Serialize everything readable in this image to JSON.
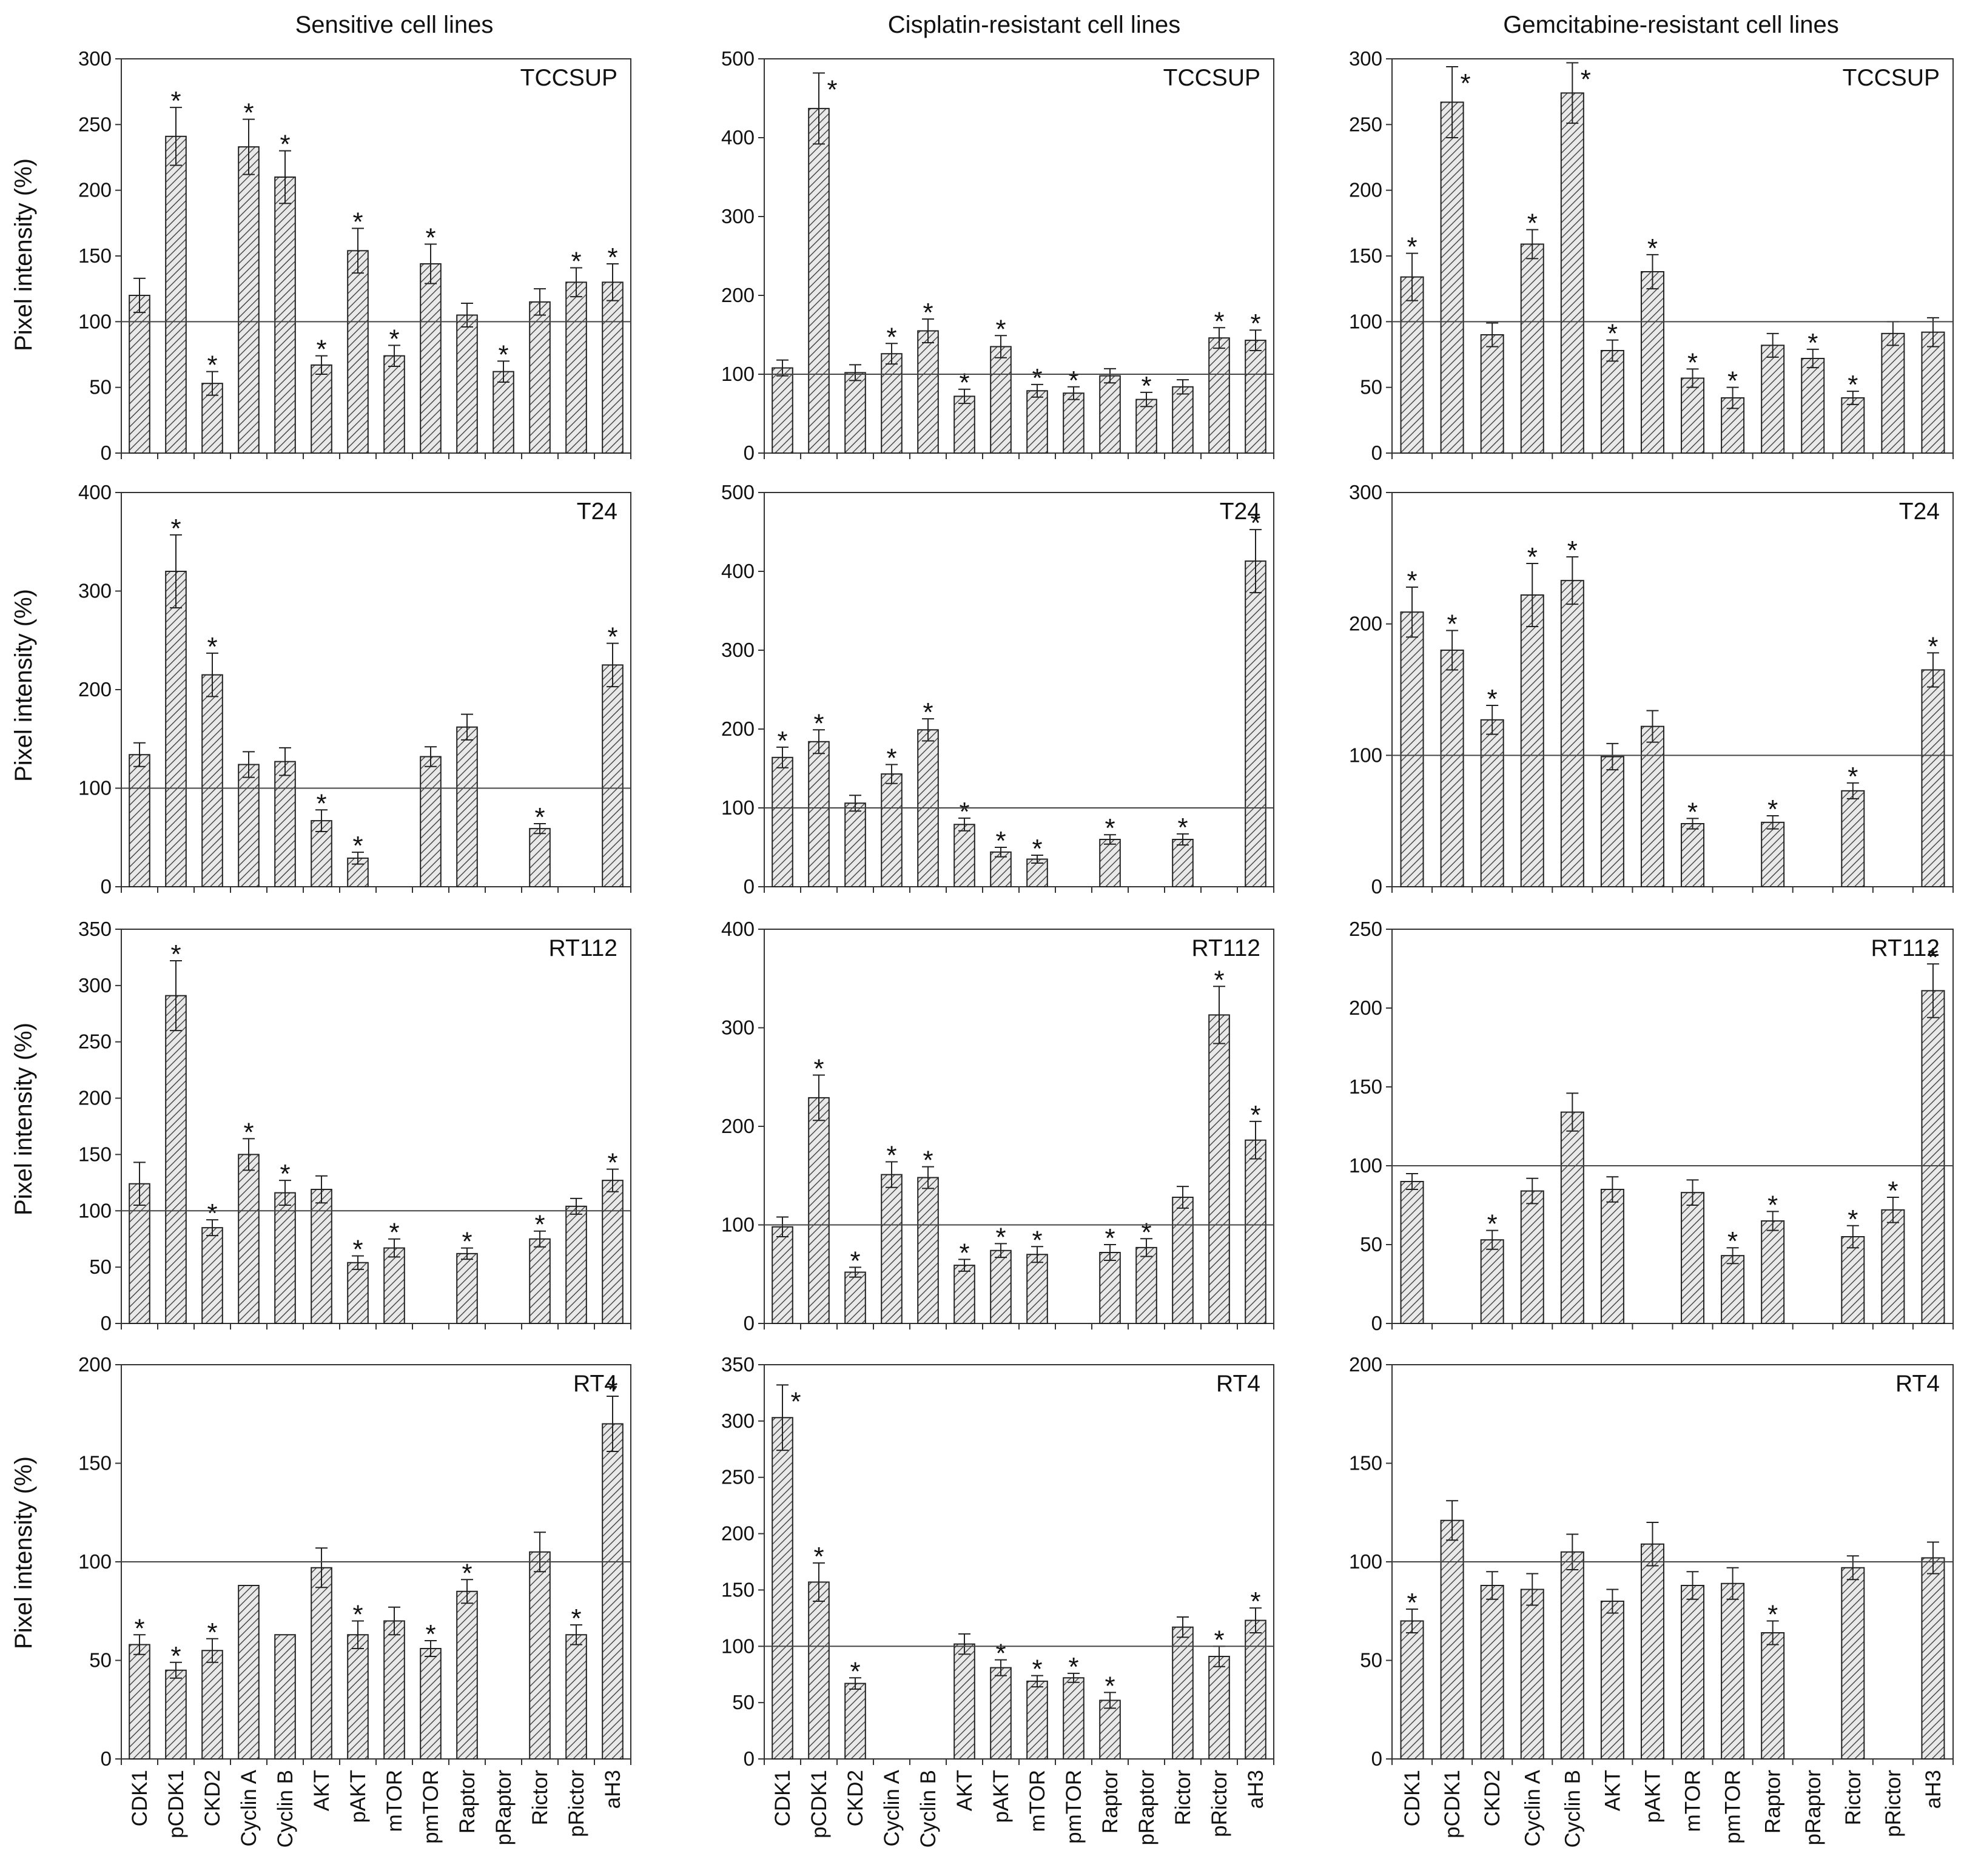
{
  "columns": [
    "Sensitive cell lines",
    "Cisplatin-resistant cell lines",
    "Gemcitabine-resistant cell lines"
  ],
  "y_axis_label": "Pixel intensity (%)",
  "chart_data": [
    {
      "type": "bar",
      "column": 0,
      "row": 0,
      "title": "TCCSUP",
      "ylim": [
        0,
        300
      ],
      "yticks": [
        0,
        50,
        100,
        150,
        200,
        250,
        300
      ],
      "reference_line": 100,
      "categories": [
        "CDK1",
        "pCDK1",
        "CKD2",
        "Cyclin A",
        "Cyclin B",
        "AKT",
        "pAKT",
        "mTOR",
        "pmTOR",
        "Raptor",
        "pRaptor",
        "Rictor",
        "pRictor",
        "aH3"
      ],
      "values": [
        120,
        241,
        53,
        233,
        210,
        67,
        154,
        74,
        144,
        105,
        62,
        115,
        130,
        130
      ],
      "errors": [
        13,
        22,
        9,
        21,
        20,
        7,
        17,
        8,
        15,
        9,
        8,
        10,
        11,
        14
      ],
      "significant": [
        false,
        true,
        true,
        true,
        true,
        true,
        true,
        true,
        true,
        false,
        true,
        false,
        true,
        true
      ]
    },
    {
      "type": "bar",
      "column": 1,
      "row": 0,
      "title": "TCCSUP",
      "ylim": [
        0,
        500
      ],
      "yticks": [
        0,
        100,
        200,
        300,
        400,
        500
      ],
      "reference_line": 100,
      "categories": [
        "CDK1",
        "pCDK1",
        "CKD2",
        "Cyclin A",
        "Cyclin B",
        "AKT",
        "pAKT",
        "mTOR",
        "pmTOR",
        "Raptor",
        "pRaptor",
        "Rictor",
        "pRictor",
        "aH3"
      ],
      "values": [
        108,
        437,
        102,
        126,
        155,
        72,
        135,
        79,
        76,
        98,
        68,
        84,
        146,
        143
      ],
      "errors": [
        10,
        45,
        10,
        13,
        15,
        9,
        14,
        8,
        8,
        9,
        9,
        9,
        13,
        13
      ],
      "significant": [
        false,
        true,
        false,
        true,
        true,
        true,
        true,
        true,
        true,
        false,
        true,
        false,
        true,
        true
      ]
    },
    {
      "type": "bar",
      "column": 2,
      "row": 0,
      "title": "TCCSUP",
      "ylim": [
        0,
        300
      ],
      "yticks": [
        0,
        50,
        100,
        150,
        200,
        250,
        300
      ],
      "reference_line": 100,
      "categories": [
        "CDK1",
        "pCDK1",
        "CKD2",
        "Cyclin A",
        "Cyclin B",
        "AKT",
        "pAKT",
        "mTOR",
        "pmTOR",
        "Raptor",
        "pRaptor",
        "Rictor",
        "pRictor",
        "aH3"
      ],
      "values": [
        134,
        267,
        90,
        159,
        274,
        78,
        138,
        57,
        42,
        82,
        72,
        42,
        91,
        92
      ],
      "errors": [
        18,
        27,
        9,
        11,
        23,
        8,
        13,
        7,
        8,
        9,
        7,
        5,
        9,
        11
      ],
      "significant": [
        true,
        true,
        false,
        true,
        true,
        true,
        true,
        true,
        true,
        false,
        true,
        true,
        false,
        false
      ]
    },
    {
      "type": "bar",
      "column": 0,
      "row": 1,
      "title": "T24",
      "ylim": [
        0,
        400
      ],
      "yticks": [
        0,
        100,
        200,
        300,
        400
      ],
      "reference_line": 100,
      "categories": [
        "CDK1",
        "pCDK1",
        "CKD2",
        "Cyclin A",
        "Cyclin B",
        "AKT",
        "pAKT",
        "mTOR",
        "pmTOR",
        "Raptor",
        "pRaptor",
        "Rictor",
        "pRictor",
        "aH3"
      ],
      "values": [
        134,
        320,
        215,
        124,
        127,
        67,
        29,
        null,
        132,
        162,
        null,
        59,
        null,
        225
      ],
      "errors": [
        12,
        37,
        22,
        13,
        14,
        11,
        6,
        null,
        10,
        13,
        null,
        5,
        null,
        22
      ],
      "significant": [
        false,
        true,
        true,
        false,
        false,
        true,
        true,
        false,
        false,
        false,
        false,
        true,
        false,
        true
      ]
    },
    {
      "type": "bar",
      "column": 1,
      "row": 1,
      "title": "T24",
      "ylim": [
        0,
        500
      ],
      "yticks": [
        0,
        100,
        200,
        300,
        400,
        500
      ],
      "reference_line": 100,
      "categories": [
        "CDK1",
        "pCDK1",
        "CKD2",
        "Cyclin A",
        "Cyclin B",
        "AKT",
        "pAKT",
        "mTOR",
        "pmTOR",
        "Raptor",
        "pRaptor",
        "Rictor",
        "pRictor",
        "aH3"
      ],
      "values": [
        164,
        184,
        106,
        143,
        199,
        79,
        44,
        35,
        null,
        60,
        null,
        60,
        null,
        413
      ],
      "errors": [
        13,
        15,
        10,
        12,
        14,
        8,
        6,
        5,
        null,
        6,
        null,
        7,
        null,
        40
      ],
      "significant": [
        true,
        true,
        false,
        true,
        true,
        true,
        true,
        true,
        false,
        true,
        false,
        true,
        false,
        true
      ]
    },
    {
      "type": "bar",
      "column": 2,
      "row": 1,
      "title": "T24",
      "ylim": [
        0,
        300
      ],
      "yticks": [
        0,
        100,
        200,
        300
      ],
      "reference_line": 100,
      "categories": [
        "CDK1",
        "pCDK1",
        "CKD2",
        "Cyclin A",
        "Cyclin B",
        "AKT",
        "pAKT",
        "mTOR",
        "pmTOR",
        "Raptor",
        "pRaptor",
        "Rictor",
        "pRictor",
        "aH3"
      ],
      "values": [
        209,
        180,
        127,
        222,
        233,
        99,
        122,
        48,
        null,
        49,
        null,
        73,
        null,
        165
      ],
      "errors": [
        19,
        15,
        11,
        24,
        18,
        10,
        12,
        4,
        null,
        5,
        null,
        6,
        null,
        13
      ],
      "significant": [
        true,
        true,
        true,
        true,
        true,
        false,
        false,
        true,
        false,
        true,
        false,
        true,
        false,
        true
      ]
    },
    {
      "type": "bar",
      "column": 0,
      "row": 2,
      "title": "RT112",
      "ylim": [
        0,
        350
      ],
      "yticks": [
        0,
        50,
        100,
        150,
        200,
        250,
        300,
        350
      ],
      "reference_line": 100,
      "categories": [
        "CDK1",
        "pCDK1",
        "CKD2",
        "Cyclin A",
        "Cyclin B",
        "AKT",
        "pAKT",
        "mTOR",
        "pmTOR",
        "Raptor",
        "pRaptor",
        "Rictor",
        "pRictor",
        "aH3"
      ],
      "values": [
        124,
        291,
        85,
        150,
        116,
        119,
        54,
        67,
        null,
        62,
        null,
        75,
        104,
        127
      ],
      "errors": [
        19,
        31,
        7,
        14,
        11,
        12,
        6,
        8,
        null,
        5,
        null,
        7,
        7,
        10
      ],
      "significant": [
        false,
        true,
        true,
        true,
        true,
        false,
        true,
        true,
        false,
        true,
        false,
        true,
        false,
        true
      ]
    },
    {
      "type": "bar",
      "column": 1,
      "row": 2,
      "title": "RT112",
      "ylim": [
        0,
        400
      ],
      "yticks": [
        0,
        100,
        200,
        300,
        400
      ],
      "reference_line": 100,
      "categories": [
        "CDK1",
        "pCDK1",
        "CKD2",
        "Cyclin A",
        "Cyclin B",
        "AKT",
        "pAKT",
        "mTOR",
        "pmTOR",
        "Raptor",
        "pRaptor",
        "Rictor",
        "pRictor",
        "aH3"
      ],
      "values": [
        98,
        229,
        52,
        151,
        148,
        59,
        74,
        70,
        null,
        72,
        77,
        128,
        313,
        186
      ],
      "errors": [
        10,
        23,
        5,
        13,
        11,
        6,
        7,
        8,
        null,
        8,
        9,
        11,
        29,
        19
      ],
      "significant": [
        false,
        true,
        true,
        true,
        true,
        true,
        true,
        true,
        false,
        true,
        true,
        false,
        true,
        true
      ]
    },
    {
      "type": "bar",
      "column": 2,
      "row": 2,
      "title": "RT112",
      "ylim": [
        0,
        250
      ],
      "yticks": [
        0,
        50,
        100,
        150,
        200,
        250
      ],
      "reference_line": 100,
      "categories": [
        "CDK1",
        "pCDK1",
        "CKD2",
        "Cyclin A",
        "Cyclin B",
        "AKT",
        "pAKT",
        "mTOR",
        "pmTOR",
        "Raptor",
        "pRaptor",
        "Rictor",
        "pRictor",
        "aH3"
      ],
      "values": [
        90,
        null,
        53,
        84,
        134,
        85,
        null,
        83,
        43,
        65,
        null,
        55,
        72,
        211
      ],
      "errors": [
        5,
        null,
        6,
        8,
        12,
        8,
        null,
        8,
        5,
        6,
        null,
        7,
        8,
        17
      ],
      "significant": [
        false,
        false,
        true,
        false,
        false,
        false,
        false,
        false,
        true,
        true,
        false,
        true,
        true,
        true
      ]
    },
    {
      "type": "bar",
      "column": 0,
      "row": 3,
      "title": "RT4",
      "ylim": [
        0,
        200
      ],
      "yticks": [
        0,
        50,
        100,
        150,
        200
      ],
      "reference_line": 100,
      "categories": [
        "CDK1",
        "pCDK1",
        "CKD2",
        "Cyclin A",
        "Cyclin B",
        "AKT",
        "pAKT",
        "mTOR",
        "pmTOR",
        "Raptor",
        "pRaptor",
        "Rictor",
        "pRictor",
        "aH3"
      ],
      "values": [
        58,
        45,
        55,
        88,
        63,
        97,
        63,
        70,
        56,
        85,
        null,
        105,
        63,
        170
      ],
      "errors": [
        5,
        4,
        6,
        0,
        0,
        10,
        7,
        7,
        4,
        6,
        null,
        10,
        5,
        14
      ],
      "significant": [
        true,
        true,
        true,
        false,
        false,
        false,
        true,
        false,
        true,
        true,
        false,
        false,
        true,
        true
      ]
    },
    {
      "type": "bar",
      "column": 1,
      "row": 3,
      "title": "RT4",
      "ylim": [
        0,
        350
      ],
      "yticks": [
        0,
        50,
        100,
        150,
        200,
        250,
        300,
        350
      ],
      "reference_line": 100,
      "categories": [
        "CDK1",
        "pCDK1",
        "CKD2",
        "Cyclin A",
        "Cyclin B",
        "AKT",
        "pAKT",
        "mTOR",
        "pmTOR",
        "Raptor",
        "pRaptor",
        "Rictor",
        "pRictor",
        "aH3"
      ],
      "values": [
        303,
        157,
        67,
        null,
        null,
        102,
        81,
        69,
        72,
        52,
        null,
        117,
        91,
        123
      ],
      "errors": [
        29,
        17,
        5,
        null,
        null,
        9,
        7,
        5,
        4,
        7,
        null,
        9,
        9,
        11
      ],
      "significant": [
        true,
        true,
        true,
        false,
        false,
        false,
        true,
        true,
        true,
        true,
        false,
        false,
        true,
        true
      ]
    },
    {
      "type": "bar",
      "column": 2,
      "row": 3,
      "title": "RT4",
      "ylim": [
        0,
        200
      ],
      "yticks": [
        0,
        50,
        100,
        150,
        200
      ],
      "reference_line": 100,
      "categories": [
        "CDK1",
        "pCDK1",
        "CKD2",
        "Cyclin A",
        "Cyclin B",
        "AKT",
        "pAKT",
        "mTOR",
        "pmTOR",
        "Raptor",
        "pRaptor",
        "Rictor",
        "pRictor",
        "aH3"
      ],
      "values": [
        70,
        121,
        88,
        86,
        105,
        80,
        109,
        88,
        89,
        64,
        null,
        97,
        null,
        102
      ],
      "errors": [
        6,
        10,
        7,
        8,
        9,
        6,
        11,
        7,
        8,
        6,
        null,
        6,
        null,
        8
      ],
      "significant": [
        true,
        false,
        false,
        false,
        false,
        false,
        false,
        false,
        false,
        true,
        false,
        false,
        false,
        false
      ]
    }
  ]
}
